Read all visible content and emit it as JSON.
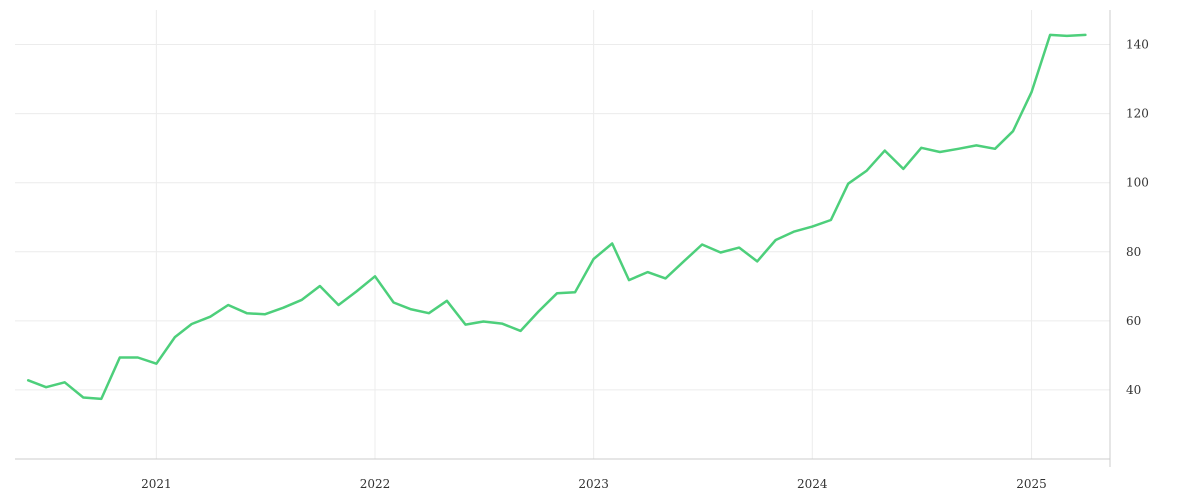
{
  "chart_data": {
    "type": "line",
    "x_axis": {
      "kind": "date",
      "range": [
        "2020-05-10",
        "2025-05-12"
      ],
      "ticks": [
        "2021-01-01",
        "2022-01-01",
        "2023-01-01",
        "2024-01-01",
        "2025-01-01"
      ],
      "tick_labels": [
        "2021",
        "2022",
        "2023",
        "2024",
        "2025"
      ]
    },
    "y_axis": {
      "position": "right",
      "range": [
        20,
        150
      ],
      "ticks": [
        40,
        60,
        80,
        100,
        120,
        140
      ],
      "tick_labels": [
        "40",
        "60",
        "80",
        "100",
        "120",
        "140"
      ]
    },
    "grid": true,
    "legend": "none",
    "series": [
      {
        "color": "#4dcf7b",
        "points": [
          [
            "2020-06-01",
            42.8
          ],
          [
            "2020-07-01",
            40.8
          ],
          [
            "2020-08-01",
            42.2
          ],
          [
            "2020-09-01",
            37.8
          ],
          [
            "2020-10-01",
            37.4
          ],
          [
            "2020-11-01",
            49.4
          ],
          [
            "2020-12-01",
            49.4
          ],
          [
            "2021-01-01",
            47.6
          ],
          [
            "2021-02-01",
            55.3
          ],
          [
            "2021-03-01",
            59.1
          ],
          [
            "2021-04-01",
            61.2
          ],
          [
            "2021-05-01",
            64.6
          ],
          [
            "2021-06-01",
            62.2
          ],
          [
            "2021-07-01",
            61.9
          ],
          [
            "2021-08-01",
            63.8
          ],
          [
            "2021-09-01",
            66.1
          ],
          [
            "2021-10-01",
            70.1
          ],
          [
            "2021-11-01",
            64.6
          ],
          [
            "2021-12-01",
            68.5
          ],
          [
            "2022-01-01",
            72.9
          ],
          [
            "2022-02-01",
            65.3
          ],
          [
            "2022-03-01",
            63.4
          ],
          [
            "2022-04-01",
            62.2
          ],
          [
            "2022-05-01",
            65.8
          ],
          [
            "2022-06-01",
            58.9
          ],
          [
            "2022-07-01",
            59.8
          ],
          [
            "2022-08-01",
            59.2
          ],
          [
            "2022-09-01",
            57.1
          ],
          [
            "2022-10-01",
            62.7
          ],
          [
            "2022-11-01",
            68.0
          ],
          [
            "2022-12-01",
            68.3
          ],
          [
            "2023-01-01",
            77.9
          ],
          [
            "2023-02-01",
            82.4
          ],
          [
            "2023-03-01",
            71.8
          ],
          [
            "2023-04-01",
            74.1
          ],
          [
            "2023-05-01",
            72.3
          ],
          [
            "2023-06-01",
            77.3
          ],
          [
            "2023-07-01",
            82.1
          ],
          [
            "2023-08-01",
            79.8
          ],
          [
            "2023-09-01",
            81.2
          ],
          [
            "2023-10-01",
            77.2
          ],
          [
            "2023-11-01",
            83.4
          ],
          [
            "2023-12-01",
            85.8
          ],
          [
            "2024-01-01",
            87.3
          ],
          [
            "2024-02-01",
            89.2
          ],
          [
            "2024-03-01",
            99.7
          ],
          [
            "2024-04-01",
            103.5
          ],
          [
            "2024-05-01",
            109.3
          ],
          [
            "2024-06-01",
            104.0
          ],
          [
            "2024-07-01",
            110.1
          ],
          [
            "2024-08-01",
            108.9
          ],
          [
            "2024-09-01",
            109.8
          ],
          [
            "2024-10-01",
            110.8
          ],
          [
            "2024-11-01",
            109.8
          ],
          [
            "2024-12-01",
            114.9
          ],
          [
            "2025-01-01",
            126.2
          ],
          [
            "2025-02-01",
            142.8
          ],
          [
            "2025-03-01",
            142.5
          ],
          [
            "2025-04-01",
            142.8
          ]
        ]
      }
    ]
  }
}
